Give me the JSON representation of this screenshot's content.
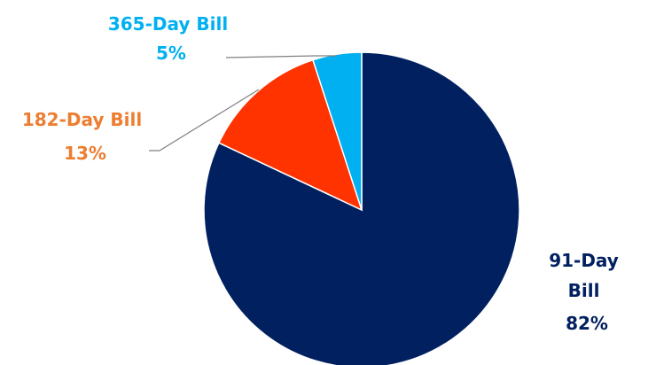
{
  "chart_data": {
    "type": "pie",
    "title": "",
    "slices": [
      {
        "name": "91-Day Bill",
        "value": 82,
        "label": "82%",
        "color": "#012060"
      },
      {
        "name": "182-Day Bill",
        "value": 13,
        "label": "13%",
        "color": "#FF3300"
      },
      {
        "name": "365-Day Bill",
        "value": 5,
        "label": "5%",
        "color": "#00B0F0"
      }
    ],
    "label_colors": {
      "91-Day Bill": "#012060",
      "182-Day Bill": "#ED7D31",
      "365-Day Bill": "#00B0F0"
    },
    "start_angle": "12 o'clock",
    "direction": "clockwise",
    "legend": "none"
  }
}
